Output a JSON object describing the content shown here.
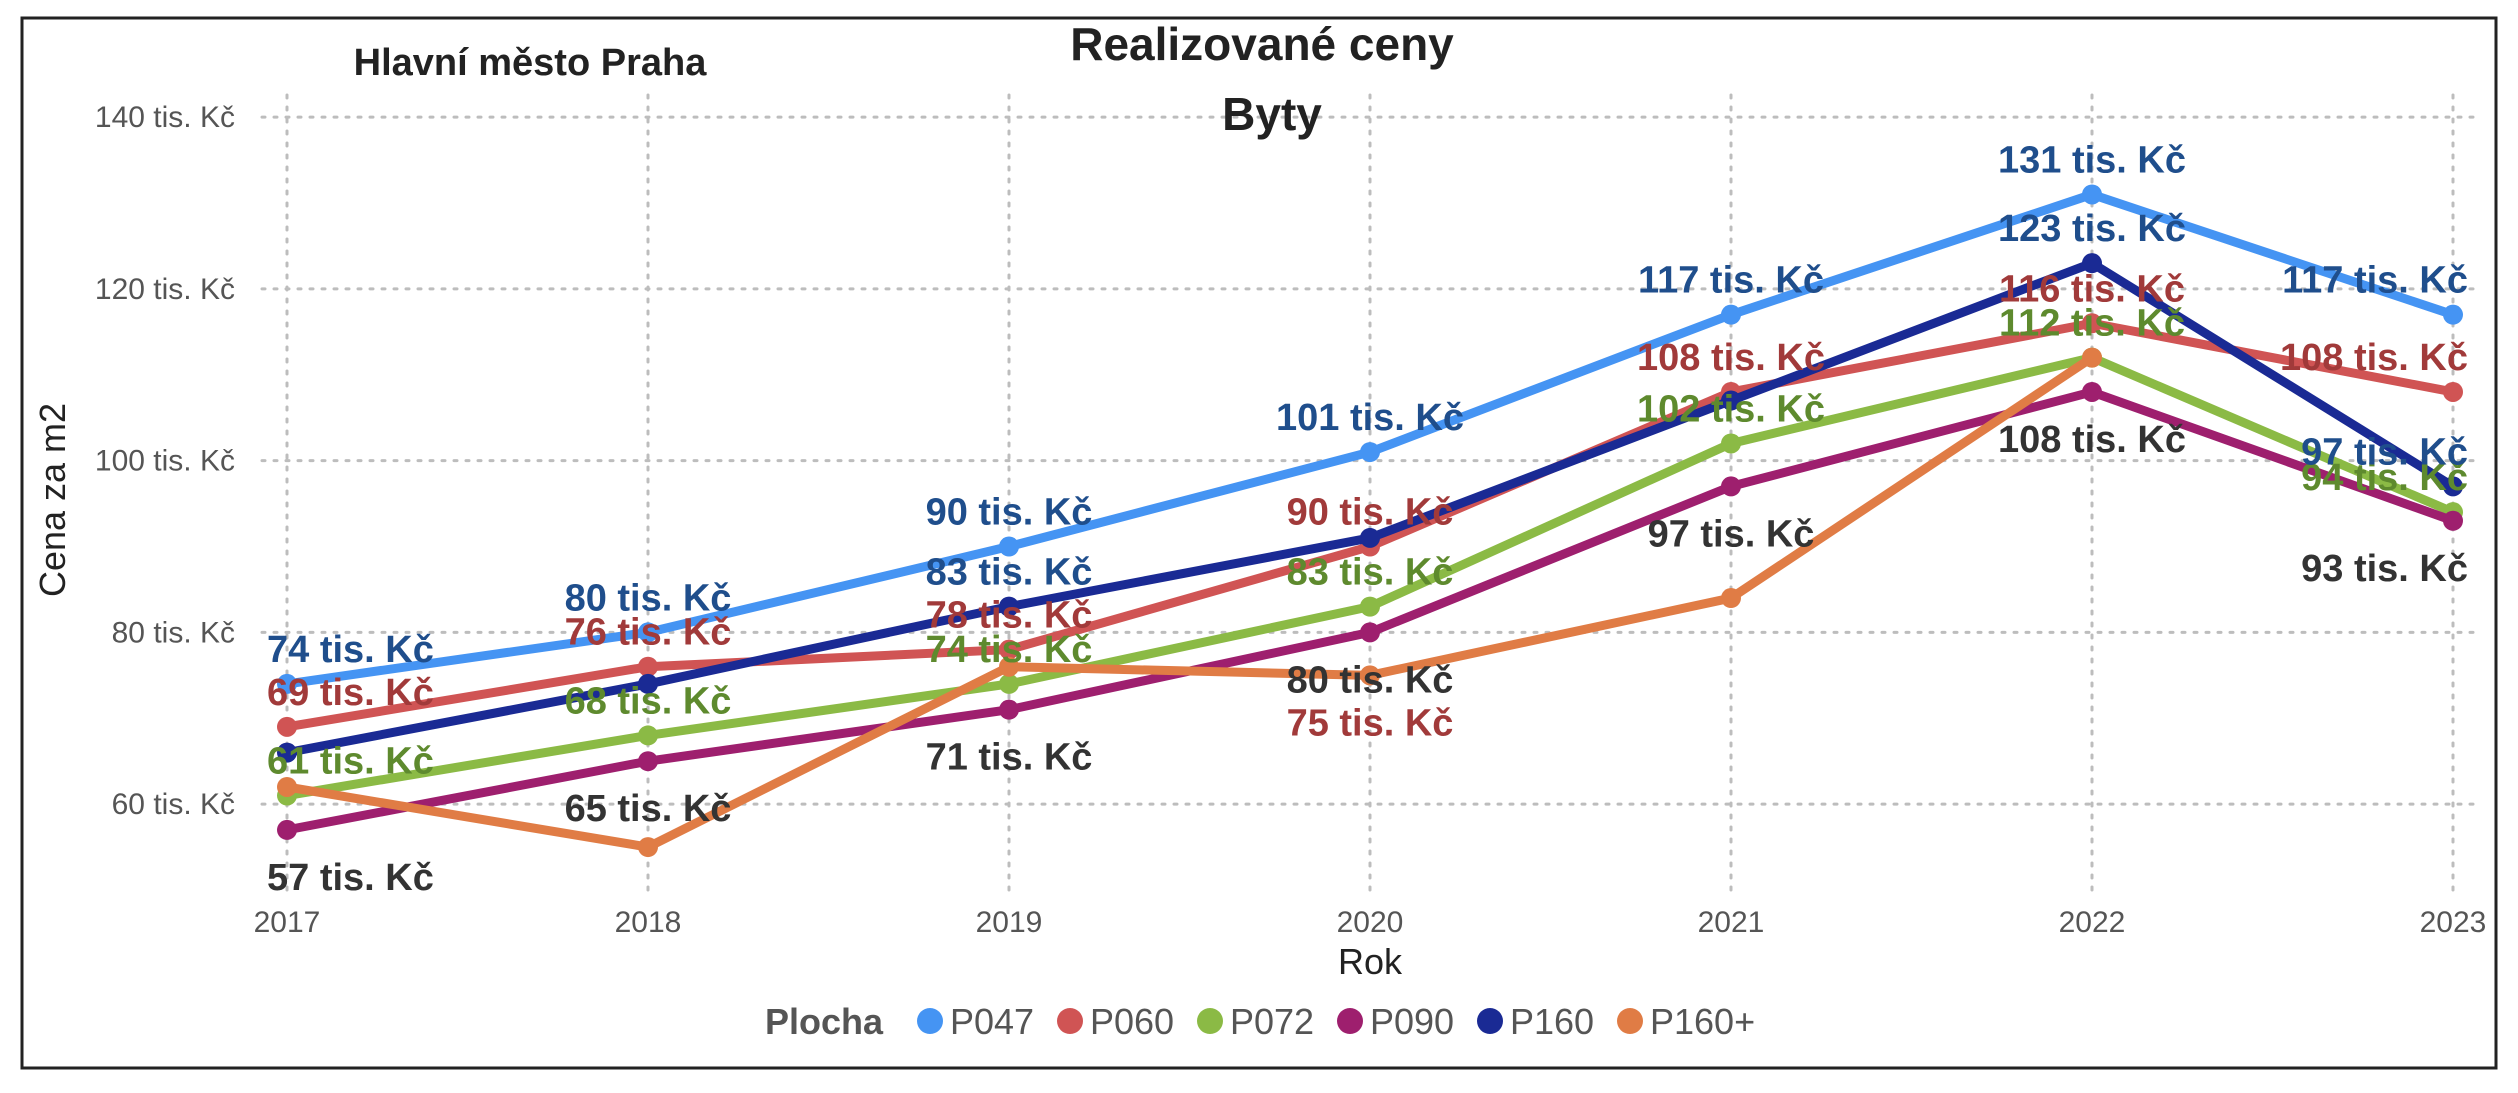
{
  "chart_data": {
    "type": "line",
    "title": "Realizované ceny",
    "subtitle": "Byty",
    "region_label": "Hlavní město Praha",
    "xlabel": "Rok",
    "ylabel": "Cena za m2",
    "x": [
      2017,
      2018,
      2019,
      2020,
      2021,
      2022,
      2023
    ],
    "x_tick_labels": [
      "2017",
      "2018",
      "2019",
      "2020",
      "2021",
      "2022",
      "2023"
    ],
    "ylim": [
      50,
      142
    ],
    "y_ticks": [
      60,
      80,
      100,
      120,
      140
    ],
    "y_tick_labels": [
      "60 tis. Kč",
      "80 tis. Kč",
      "100 tis. Kč",
      "120 tis. Kč",
      "140 tis. Kč"
    ],
    "grid": true,
    "legend_title": "Plocha",
    "legend_position": "bottom",
    "series": [
      {
        "name": "P047",
        "color": "#4594F3",
        "label_color": "#1F4E8C",
        "values": [
          74,
          80,
          90,
          101,
          117,
          131,
          117
        ],
        "labels": [
          "74 tis. Kč",
          "80 tis. Kč",
          "90 tis. Kč",
          "101 tis. Kč",
          "117 tis. Kč",
          "131 tis. Kč",
          "117 tis. Kč"
        ]
      },
      {
        "name": "P060",
        "color": "#D05454",
        "label_color": "#A13A3A",
        "values": [
          69,
          76,
          78,
          90,
          108,
          116,
          108
        ],
        "labels": [
          "69 tis. Kč",
          "76 tis. Kč",
          "78 tis. Kč",
          "90 tis. Kč",
          "108 tis. Kč",
          "116 tis. Kč",
          "108 tis. Kč"
        ]
      },
      {
        "name": "P072",
        "color": "#8BBA45",
        "label_color": "#5E8A2E",
        "values": [
          61,
          68,
          74,
          83,
          102,
          112,
          94
        ],
        "labels": [
          "61 tis. Kč",
          "68 tis. Kč",
          "74 tis. Kč",
          "83 tis. Kč",
          "102 tis. Kč",
          "112 tis. Kč",
          "94 tis. Kč"
        ]
      },
      {
        "name": "P090",
        "color": "#9E1F6E",
        "label_color": "#333333",
        "values": [
          57,
          65,
          71,
          80,
          97,
          108,
          93
        ],
        "labels": [
          "57 tis. Kč",
          "65 tis. Kč",
          "71 tis. Kč",
          "80 tis. Kč",
          "97 tis. Kč",
          "108 tis. Kč",
          "93 tis. Kč"
        ]
      },
      {
        "name": "P160",
        "color": "#1A2A94",
        "label_color": "#1F4E8C",
        "values": [
          66,
          74,
          83,
          91,
          107,
          123,
          97
        ],
        "labels": [
          "",
          "",
          "83 tis. Kč",
          "",
          "",
          "123 tis. Kč",
          "97 tis. Kč"
        ]
      },
      {
        "name": "P160+",
        "color": "#E07C45",
        "label_color": "#A13A3A",
        "values": [
          62,
          55,
          76,
          75,
          84,
          112,
          null
        ],
        "labels": [
          "",
          "",
          "",
          "75 tis. Kč",
          "",
          "",
          ""
        ]
      }
    ]
  }
}
